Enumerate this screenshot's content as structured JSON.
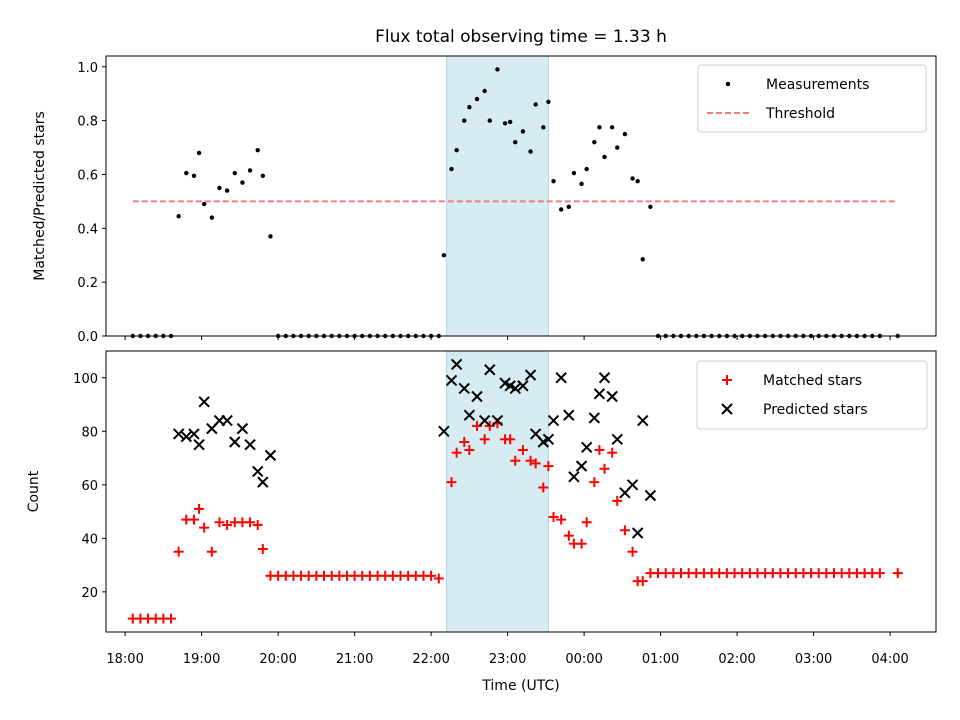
{
  "chart_data": [
    {
      "type": "scatter",
      "title": "Flux total observing time = 1.33 h",
      "xlabel": "",
      "ylabel": "Matched/Predicted stars",
      "ylim": [
        0,
        1.04
      ],
      "yticks": [
        "0.0",
        "0.2",
        "0.4",
        "0.6",
        "0.8",
        "1.0"
      ],
      "shaded_span": {
        "start": "22:12",
        "end": "23:32"
      },
      "legend": {
        "placement": "top-right",
        "entries": [
          "Measurements",
          "Threshold"
        ]
      },
      "threshold": {
        "name": "Threshold",
        "y": 0.5,
        "x_start": "18:06",
        "x_end": "04:06",
        "color": "#f08080"
      },
      "series": [
        {
          "name": "Measurements",
          "color": "#000000",
          "points": [
            [
              "18:06",
              0
            ],
            [
              "18:12",
              0
            ],
            [
              "18:18",
              0
            ],
            [
              "18:24",
              0
            ],
            [
              "18:30",
              0
            ],
            [
              "18:36",
              0
            ],
            [
              "18:42",
              0.445
            ],
            [
              "18:48",
              0.605
            ],
            [
              "18:54",
              0.595
            ],
            [
              "18:58",
              0.68
            ],
            [
              "19:02",
              0.49
            ],
            [
              "19:08",
              0.44
            ],
            [
              "19:14",
              0.55
            ],
            [
              "19:20",
              0.54
            ],
            [
              "19:26",
              0.605
            ],
            [
              "19:32",
              0.57
            ],
            [
              "19:38",
              0.615
            ],
            [
              "19:44",
              0.69
            ],
            [
              "19:48",
              0.595
            ],
            [
              "19:54",
              0.37
            ],
            [
              "20:00",
              0
            ],
            [
              "20:06",
              0
            ],
            [
              "20:12",
              0
            ],
            [
              "20:18",
              0
            ],
            [
              "20:24",
              0
            ],
            [
              "20:30",
              0
            ],
            [
              "20:36",
              0
            ],
            [
              "20:42",
              0
            ],
            [
              "20:48",
              0
            ],
            [
              "20:54",
              0
            ],
            [
              "21:00",
              0
            ],
            [
              "21:06",
              0
            ],
            [
              "21:12",
              0
            ],
            [
              "21:18",
              0
            ],
            [
              "21:24",
              0
            ],
            [
              "21:30",
              0
            ],
            [
              "21:36",
              0
            ],
            [
              "21:42",
              0
            ],
            [
              "21:48",
              0
            ],
            [
              "21:54",
              0
            ],
            [
              "22:00",
              0
            ],
            [
              "22:06",
              0
            ],
            [
              "22:10",
              0.3
            ],
            [
              "22:16",
              0.62
            ],
            [
              "22:20",
              0.69
            ],
            [
              "22:26",
              0.8
            ],
            [
              "22:30",
              0.85
            ],
            [
              "22:36",
              0.88
            ],
            [
              "22:42",
              0.91
            ],
            [
              "22:46",
              0.8
            ],
            [
              "22:52",
              0.99
            ],
            [
              "22:58",
              0.79
            ],
            [
              "23:02",
              0.795
            ],
            [
              "23:06",
              0.72
            ],
            [
              "23:12",
              0.76
            ],
            [
              "23:18",
              0.685
            ],
            [
              "23:22",
              0.86
            ],
            [
              "23:28",
              0.775
            ],
            [
              "23:32",
              0.87
            ],
            [
              "23:36",
              0.575
            ],
            [
              "23:42",
              0.47
            ],
            [
              "23:48",
              0.48
            ],
            [
              "23:52",
              0.605
            ],
            [
              "23:58",
              0.565
            ],
            [
              "00:02",
              0.62
            ],
            [
              "00:08",
              0.72
            ],
            [
              "00:12",
              0.775
            ],
            [
              "00:16",
              0.665
            ],
            [
              "00:22",
              0.775
            ],
            [
              "00:26",
              0.7
            ],
            [
              "00:32",
              0.75
            ],
            [
              "00:38",
              0.585
            ],
            [
              "00:42",
              0.575
            ],
            [
              "00:46",
              0.285
            ],
            [
              "00:52",
              0.48
            ],
            [
              "00:58",
              0
            ],
            [
              "01:04",
              0
            ],
            [
              "01:10",
              0
            ],
            [
              "01:16",
              0
            ],
            [
              "01:22",
              0
            ],
            [
              "01:28",
              0
            ],
            [
              "01:34",
              0
            ],
            [
              "01:40",
              0
            ],
            [
              "01:46",
              0
            ],
            [
              "01:52",
              0
            ],
            [
              "01:58",
              0
            ],
            [
              "02:04",
              0
            ],
            [
              "02:10",
              0
            ],
            [
              "02:16",
              0
            ],
            [
              "02:22",
              0
            ],
            [
              "02:28",
              0
            ],
            [
              "02:34",
              0
            ],
            [
              "02:40",
              0
            ],
            [
              "02:46",
              0
            ],
            [
              "02:52",
              0
            ],
            [
              "02:58",
              0
            ],
            [
              "03:04",
              0
            ],
            [
              "03:10",
              0
            ],
            [
              "03:16",
              0
            ],
            [
              "03:22",
              0
            ],
            [
              "03:28",
              0
            ],
            [
              "03:34",
              0
            ],
            [
              "03:40",
              0
            ],
            [
              "03:46",
              0
            ],
            [
              "03:52",
              0
            ],
            [
              "04:06",
              0
            ]
          ]
        }
      ]
    },
    {
      "type": "scatter",
      "title": "",
      "xlabel": "Time (UTC)",
      "ylabel": "Count",
      "ylim": [
        5,
        110
      ],
      "yticks": [
        "20",
        "40",
        "60",
        "80",
        "100"
      ],
      "xticks": [
        "18:00",
        "19:00",
        "20:00",
        "21:00",
        "22:00",
        "23:00",
        "00:00",
        "01:00",
        "02:00",
        "03:00",
        "04:00"
      ],
      "shaded_span": {
        "start": "22:12",
        "end": "23:32"
      },
      "legend": {
        "placement": "top-right",
        "entries": [
          "Matched stars",
          "Predicted stars"
        ]
      },
      "series": [
        {
          "name": "Matched stars",
          "marker": "+",
          "color": "#ff0000",
          "points": [
            [
              "18:06",
              10
            ],
            [
              "18:12",
              10
            ],
            [
              "18:18",
              10
            ],
            [
              "18:24",
              10
            ],
            [
              "18:30",
              10
            ],
            [
              "18:36",
              10
            ],
            [
              "18:42",
              35
            ],
            [
              "18:48",
              47
            ],
            [
              "18:54",
              47
            ],
            [
              "18:58",
              51
            ],
            [
              "19:02",
              44
            ],
            [
              "19:08",
              35
            ],
            [
              "19:14",
              46
            ],
            [
              "19:20",
              45
            ],
            [
              "19:26",
              46
            ],
            [
              "19:32",
              46
            ],
            [
              "19:38",
              46
            ],
            [
              "19:44",
              45
            ],
            [
              "19:48",
              36
            ],
            [
              "19:54",
              26
            ],
            [
              "20:00",
              26
            ],
            [
              "20:06",
              26
            ],
            [
              "20:12",
              26
            ],
            [
              "20:18",
              26
            ],
            [
              "20:24",
              26
            ],
            [
              "20:30",
              26
            ],
            [
              "20:36",
              26
            ],
            [
              "20:42",
              26
            ],
            [
              "20:48",
              26
            ],
            [
              "20:54",
              26
            ],
            [
              "21:00",
              26
            ],
            [
              "21:06",
              26
            ],
            [
              "21:12",
              26
            ],
            [
              "21:18",
              26
            ],
            [
              "21:24",
              26
            ],
            [
              "21:30",
              26
            ],
            [
              "21:36",
              26
            ],
            [
              "21:42",
              26
            ],
            [
              "21:48",
              26
            ],
            [
              "21:54",
              26
            ],
            [
              "22:00",
              26
            ],
            [
              "22:06",
              25
            ],
            [
              "22:16",
              61
            ],
            [
              "22:20",
              72
            ],
            [
              "22:26",
              76
            ],
            [
              "22:30",
              73
            ],
            [
              "22:36",
              82
            ],
            [
              "22:42",
              77
            ],
            [
              "22:46",
              82
            ],
            [
              "22:52",
              83
            ],
            [
              "22:58",
              77
            ],
            [
              "23:02",
              77
            ],
            [
              "23:06",
              69
            ],
            [
              "23:12",
              73
            ],
            [
              "23:18",
              69
            ],
            [
              "23:22",
              68
            ],
            [
              "23:28",
              59
            ],
            [
              "23:32",
              67
            ],
            [
              "23:36",
              48
            ],
            [
              "23:42",
              47
            ],
            [
              "23:48",
              41
            ],
            [
              "23:52",
              38
            ],
            [
              "23:58",
              38
            ],
            [
              "00:02",
              46
            ],
            [
              "00:08",
              61
            ],
            [
              "00:12",
              73
            ],
            [
              "00:16",
              66
            ],
            [
              "00:22",
              72
            ],
            [
              "00:26",
              54
            ],
            [
              "00:32",
              43
            ],
            [
              "00:38",
              35
            ],
            [
              "00:42",
              24
            ],
            [
              "00:46",
              24
            ],
            [
              "00:52",
              27
            ],
            [
              "00:58",
              27
            ],
            [
              "01:04",
              27
            ],
            [
              "01:10",
              27
            ],
            [
              "01:16",
              27
            ],
            [
              "01:22",
              27
            ],
            [
              "01:28",
              27
            ],
            [
              "01:34",
              27
            ],
            [
              "01:40",
              27
            ],
            [
              "01:46",
              27
            ],
            [
              "01:52",
              27
            ],
            [
              "01:58",
              27
            ],
            [
              "02:04",
              27
            ],
            [
              "02:10",
              27
            ],
            [
              "02:16",
              27
            ],
            [
              "02:22",
              27
            ],
            [
              "02:28",
              27
            ],
            [
              "02:34",
              27
            ],
            [
              "02:40",
              27
            ],
            [
              "02:46",
              27
            ],
            [
              "02:52",
              27
            ],
            [
              "02:58",
              27
            ],
            [
              "03:04",
              27
            ],
            [
              "03:10",
              27
            ],
            [
              "03:16",
              27
            ],
            [
              "03:22",
              27
            ],
            [
              "03:28",
              27
            ],
            [
              "03:34",
              27
            ],
            [
              "03:40",
              27
            ],
            [
              "03:46",
              27
            ],
            [
              "03:52",
              27
            ],
            [
              "04:06",
              27
            ]
          ]
        },
        {
          "name": "Predicted stars",
          "marker": "x",
          "color": "#000000",
          "points": [
            [
              "18:42",
              79
            ],
            [
              "18:48",
              78
            ],
            [
              "18:54",
              79
            ],
            [
              "18:58",
              75
            ],
            [
              "19:02",
              91
            ],
            [
              "19:08",
              81
            ],
            [
              "19:14",
              84
            ],
            [
              "19:20",
              84
            ],
            [
              "19:26",
              76
            ],
            [
              "19:32",
              81
            ],
            [
              "19:38",
              75
            ],
            [
              "19:44",
              65
            ],
            [
              "19:48",
              61
            ],
            [
              "19:54",
              71
            ],
            [
              "22:10",
              80
            ],
            [
              "22:16",
              99
            ],
            [
              "22:20",
              105
            ],
            [
              "22:26",
              96
            ],
            [
              "22:30",
              86
            ],
            [
              "22:36",
              93
            ],
            [
              "22:42",
              84
            ],
            [
              "22:46",
              103
            ],
            [
              "22:52",
              84
            ],
            [
              "22:58",
              98
            ],
            [
              "23:02",
              97
            ],
            [
              "23:06",
              96
            ],
            [
              "23:12",
              97
            ],
            [
              "23:18",
              101
            ],
            [
              "23:22",
              79
            ],
            [
              "23:28",
              76
            ],
            [
              "23:32",
              77
            ],
            [
              "23:36",
              84
            ],
            [
              "23:42",
              100
            ],
            [
              "23:48",
              86
            ],
            [
              "23:52",
              63
            ],
            [
              "23:58",
              67
            ],
            [
              "00:02",
              74
            ],
            [
              "00:08",
              85
            ],
            [
              "00:12",
              94
            ],
            [
              "00:16",
              100
            ],
            [
              "00:22",
              93
            ],
            [
              "00:26",
              77
            ],
            [
              "00:32",
              57
            ],
            [
              "00:38",
              60
            ],
            [
              "00:42",
              42
            ],
            [
              "00:46",
              84
            ],
            [
              "00:52",
              56
            ]
          ]
        }
      ]
    }
  ]
}
